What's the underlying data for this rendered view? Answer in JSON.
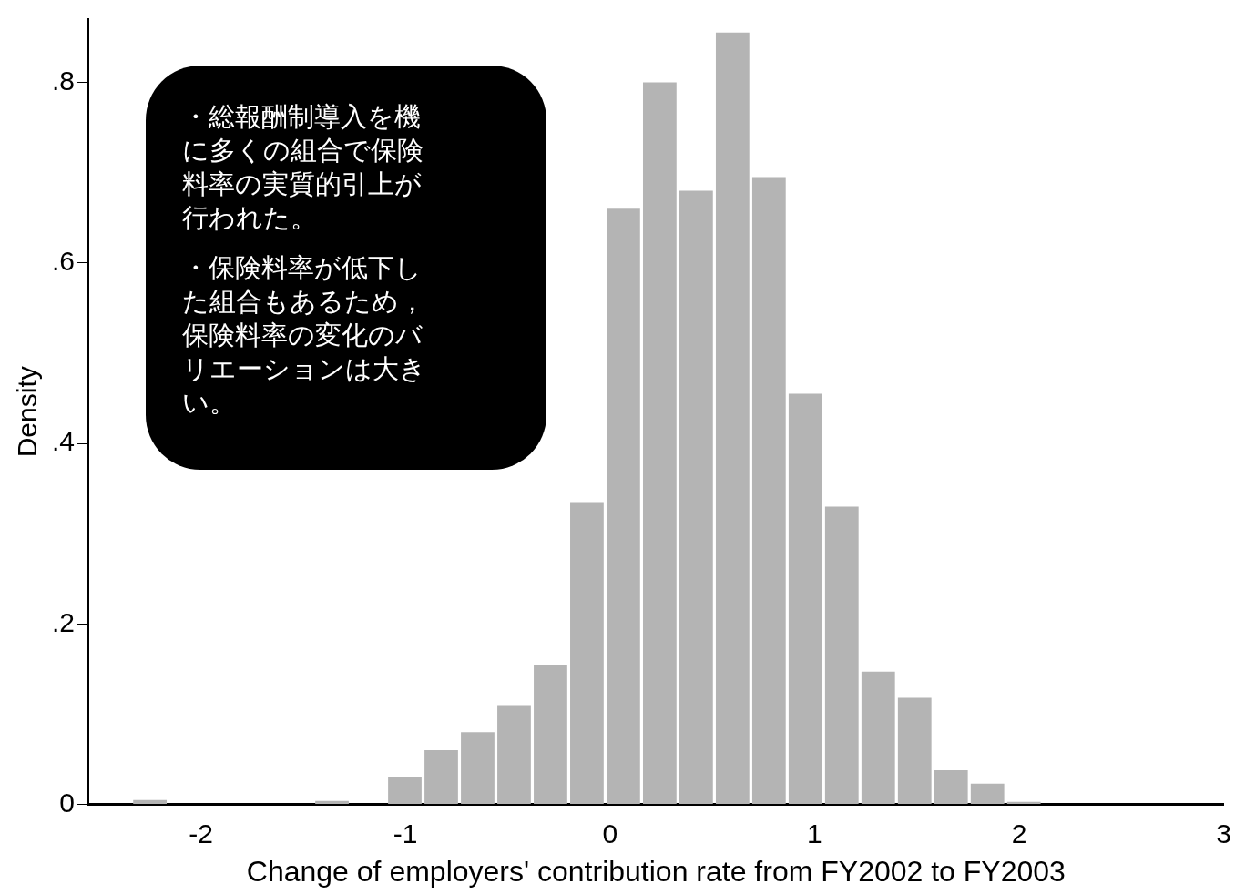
{
  "chart_data": {
    "type": "histogram",
    "xlabel": "Change of employers' contribution rate from FY2002 to FY2003",
    "ylabel": "Density",
    "bins": [
      -2.338,
      -2.16,
      -1.982,
      -1.804,
      -1.626,
      -1.448,
      -1.27,
      -1.092,
      -0.914,
      -0.736,
      -0.558,
      -0.38,
      -0.202,
      -0.024,
      0.154,
      0.332,
      0.51,
      0.688,
      0.866,
      1.044,
      1.222,
      1.4,
      1.578,
      1.756,
      1.934,
      2.112
    ],
    "values": [
      0.005,
      0,
      0,
      0,
      0,
      0.004,
      0,
      0.03,
      0.06,
      0.08,
      0.11,
      0.155,
      0.335,
      0.66,
      0.8,
      0.68,
      0.855,
      0.695,
      0.455,
      0.33,
      0.147,
      0.118,
      0.038,
      0.023,
      0.003
    ],
    "color": "#b4b4b4",
    "xlim": [
      -2.55,
      3
    ],
    "xticks": [
      -2,
      -1,
      0,
      1,
      2,
      3
    ],
    "ylim": [
      0,
      0.87
    ],
    "yticks": [
      0,
      {
        "value": 0.2,
        "label": ".2"
      },
      {
        "value": 0.4,
        "label": ".4"
      },
      {
        "value": 0.6,
        "label": ".6"
      },
      {
        "value": 0.8,
        "label": ".8"
      }
    ],
    "grid": false,
    "annotations": [
      "・総報酬制導入を機に多くの組合で保険料率の実質的引上が行われた。",
      "・保険料率が低下した組合もあるため，保険料率の変化のバリエーションは大きい。"
    ]
  }
}
